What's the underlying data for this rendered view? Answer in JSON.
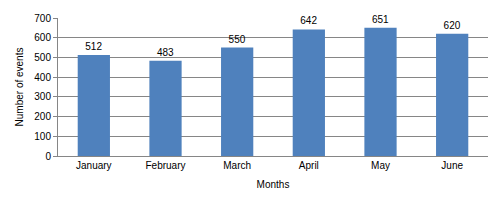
{
  "chart_data": {
    "type": "bar",
    "x_label": "Months",
    "y_label": "Number of events",
    "categories": [
      "January",
      "February",
      "March",
      "April",
      "May",
      "June"
    ],
    "values": [
      512,
      483,
      550,
      642,
      651,
      620
    ],
    "color": "#4f81bd",
    "ylim": [
      0,
      700
    ],
    "yticks": [
      0,
      100,
      200,
      300,
      400,
      500,
      600,
      700
    ],
    "grid": true,
    "data_labels": true
  }
}
